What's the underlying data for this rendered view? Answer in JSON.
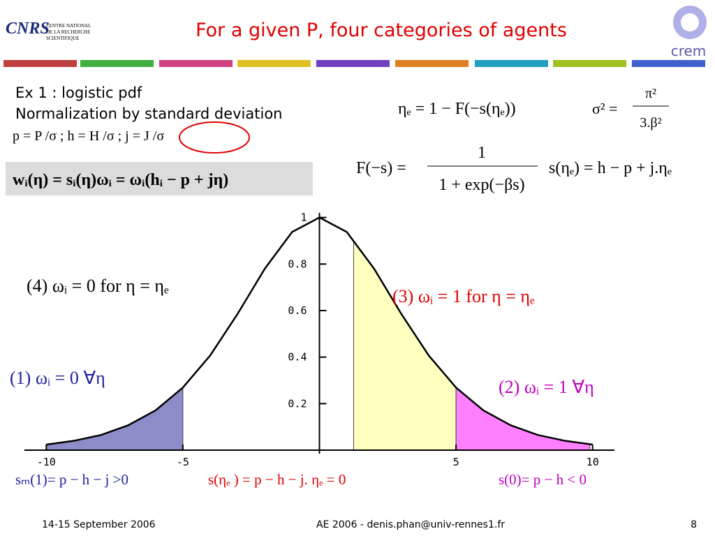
{
  "header": {
    "title": "For a given P, four categories of agents",
    "left_logo": {
      "mark": "CNRS",
      "lines": [
        "CENTRE NATIONAL",
        "DE LA RECHERCHE",
        "SCIENTIFIQUE"
      ]
    },
    "right_logo": "crem"
  },
  "text_lines": [
    "Ex 1 : logistic pdf",
    "Normalization by standard deviation",
    "p = P /σ ;  h = H /σ ;  j = J /σ"
  ],
  "formulas": {
    "eta_e": "ηₑ = 1 − F(−s(ηₑ))",
    "sigma": {
      "lhs": "σ² =",
      "num": "π²",
      "den": "3.β²"
    },
    "F": {
      "lhs": "F(−s) =",
      "num": "1",
      "den": "1 + exp(−βs)"
    },
    "s": "s(ηₑ) = h − p + j.ηₑ",
    "w": "wᵢ(η) = sᵢ(η)ωᵢ = ωᵢ(hᵢ − p + jη)"
  },
  "chart_data": {
    "type": "line",
    "x": [
      -10,
      -9,
      -8,
      -7,
      -6,
      -5,
      -4,
      -3,
      -2,
      -1,
      0,
      1,
      2,
      3,
      4,
      5,
      6,
      7,
      8,
      9,
      10
    ],
    "values": [
      0.024,
      0.04,
      0.065,
      0.107,
      0.171,
      0.269,
      0.407,
      0.585,
      0.78,
      0.938,
      1,
      0.938,
      0.78,
      0.585,
      0.407,
      0.269,
      0.171,
      0.107,
      0.065,
      0.04,
      0.024
    ],
    "color": "#000000",
    "xlim": [
      -10.8,
      10.8
    ],
    "ylim": [
      0,
      1.02
    ],
    "xticks": [
      -10,
      -5,
      5,
      10
    ],
    "yticks": [
      0.2,
      0.4,
      0.6,
      0.8,
      1
    ],
    "regions": [
      {
        "from": -10,
        "to": -5,
        "color": "#8c8cc8"
      },
      {
        "from": 1.25,
        "to": 5,
        "color": "#ffffc0"
      },
      {
        "from": 5,
        "to": 9.9,
        "color": "#ff80ff"
      }
    ],
    "annotations": [
      {
        "text": "(4) ωᵢ = 0  for η = ηₑ",
        "color": "#000000"
      },
      {
        "text": "(3) ωᵢ = 1  for η = ηₑ",
        "color": "#e00000"
      },
      {
        "text": "(1) ωᵢ = 0  ∀η",
        "color": "#2020a0"
      },
      {
        "text": "(2) ωᵢ = 1  ∀η",
        "color": "#c000c0"
      }
    ],
    "conditions": [
      {
        "text": "sₘ(1)=  p − h − j >0",
        "color": "#2020a0"
      },
      {
        "text": "s(ηₑ ) =  p − h − j. ηₑ = 0",
        "color": "#e00000"
      },
      {
        "text": "s(0)=  p − h  < 0",
        "color": "#c000c0"
      }
    ]
  },
  "footer": {
    "date": "14-15 September 2006",
    "event": "AE 2006 - denis.phan@univ-rennes1.fr",
    "page": "8"
  }
}
